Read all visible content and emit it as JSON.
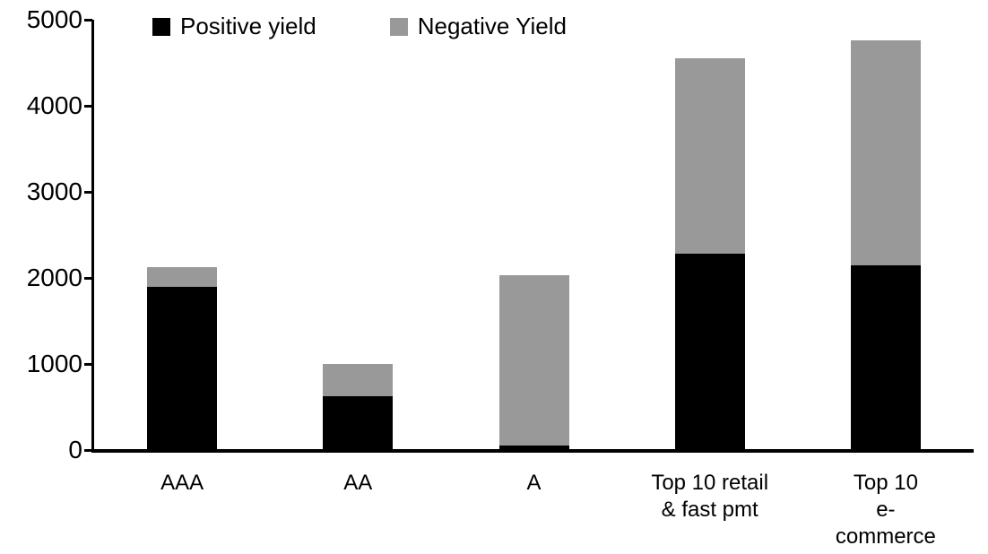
{
  "chart_data": {
    "type": "bar",
    "stacked": true,
    "title": "",
    "xlabel": "",
    "ylabel": "",
    "grid": false,
    "legend_position": "top",
    "ylim": [
      0,
      5000
    ],
    "yticks": [
      0,
      1000,
      2000,
      3000,
      4000,
      5000
    ],
    "categories": [
      "AAA",
      "AA",
      "A",
      "Top 10 retail\n& fast pmt",
      "Top 10\ne-commerce"
    ],
    "series": [
      {
        "name": "Positive yield",
        "color": "#000000",
        "values": [
          1900,
          620,
          50,
          2280,
          2150
        ]
      },
      {
        "name": "Negative Yield",
        "color": "#999999",
        "values": [
          230,
          380,
          1980,
          2270,
          2610
        ]
      }
    ],
    "totals": [
      2130,
      1000,
      2030,
      4550,
      4760
    ]
  },
  "colors": {
    "positive": "#000000",
    "negative": "#999999",
    "axis": "#000000",
    "background": "#ffffff"
  }
}
